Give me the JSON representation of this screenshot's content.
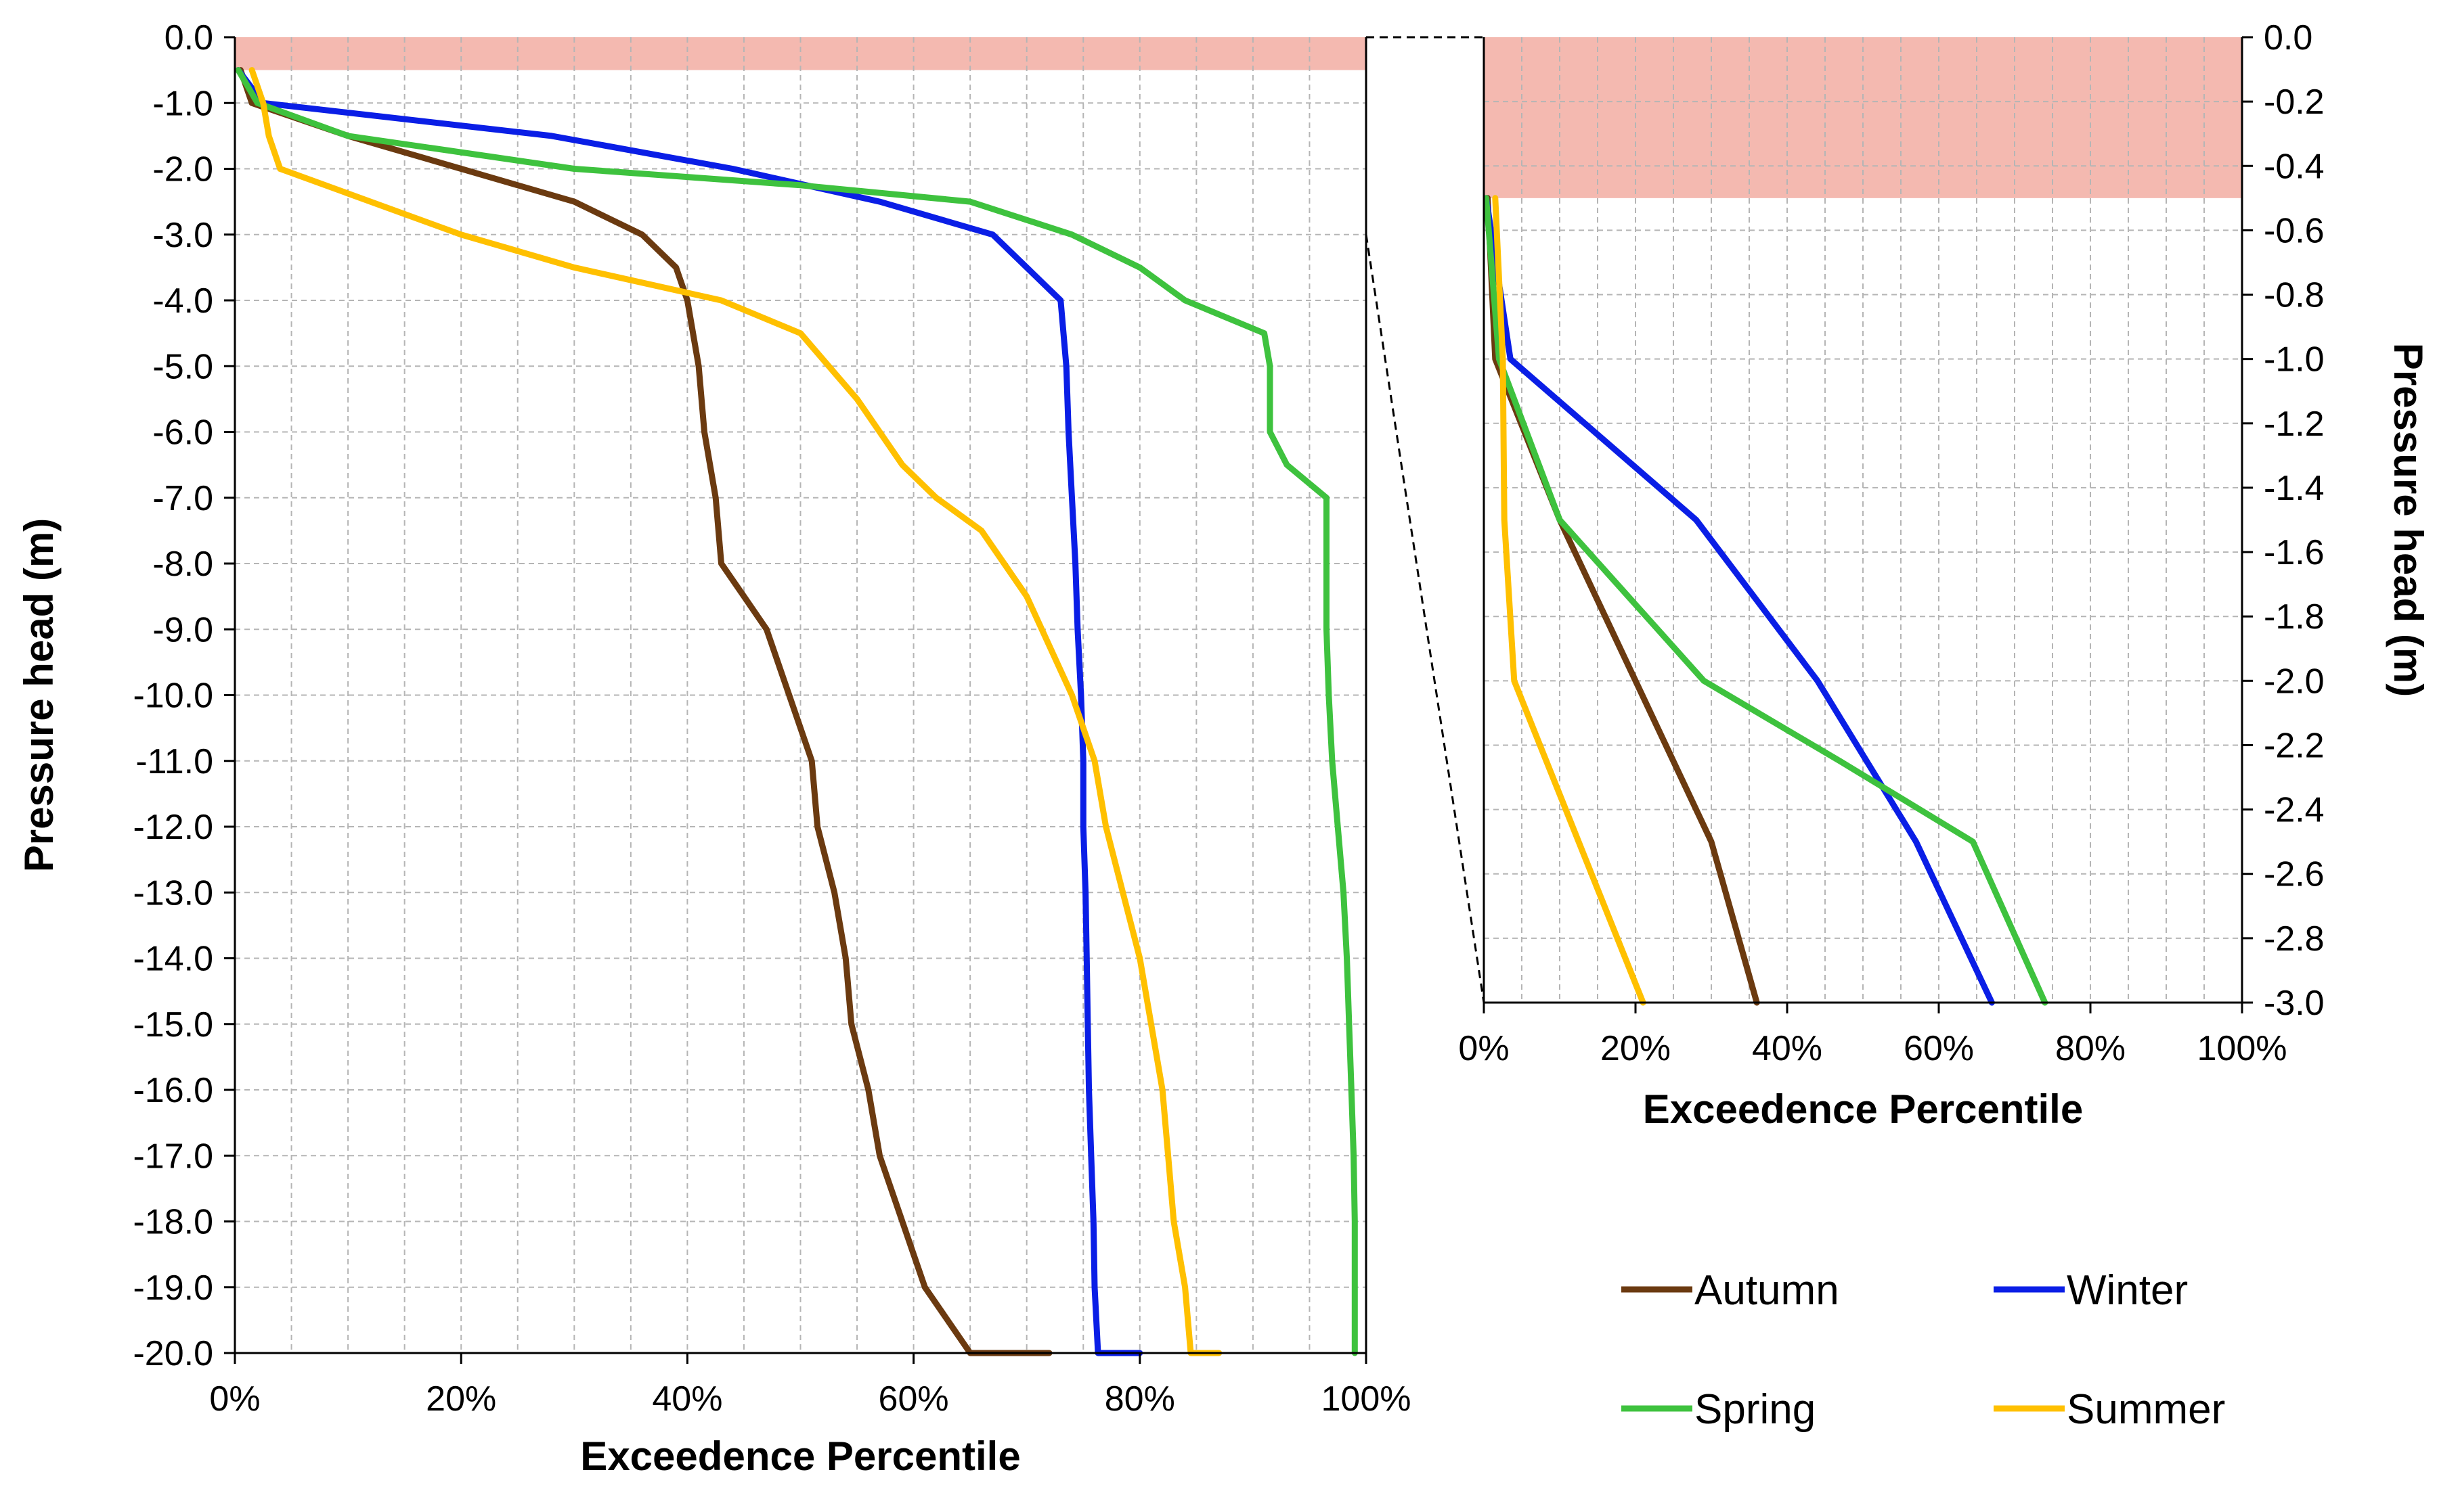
{
  "chart_data": [
    {
      "id": "main",
      "type": "line",
      "title": "",
      "xlabel": "Exceedence Percentile",
      "ylabel": "Pressure head (m)",
      "xlim": [
        0,
        100
      ],
      "ylim": [
        -20,
        0
      ],
      "x_ticks": [
        "0%",
        "20%",
        "40%",
        "60%",
        "80%",
        "100%"
      ],
      "y_ticks": [
        "0.0",
        "-1.0",
        "-2.0",
        "-3.0",
        "-4.0",
        "-5.0",
        "-6.0",
        "-7.0",
        "-8.0",
        "-9.0",
        "-10.0",
        "-11.0",
        "-12.0",
        "-13.0",
        "-14.0",
        "-15.0",
        "-16.0",
        "-17.0",
        "-18.0",
        "-19.0",
        "-20.0"
      ],
      "grid": true,
      "shaded_band": {
        "y_from": 0.0,
        "y_to": -0.5,
        "color": "#f4b9b0"
      },
      "series": [
        {
          "name": "Autumn",
          "color": "#6b3a10",
          "points": [
            [
              0.5,
              -0.5
            ],
            [
              1.5,
              -1.0
            ],
            [
              10,
              -1.5
            ],
            [
              20,
              -2.0
            ],
            [
              30,
              -2.5
            ],
            [
              36,
              -3.0
            ],
            [
              39,
              -3.5
            ],
            [
              40,
              -4.0
            ],
            [
              41,
              -5.0
            ],
            [
              41.5,
              -6.0
            ],
            [
              42.5,
              -7.0
            ],
            [
              43,
              -8.0
            ],
            [
              45,
              -8.5
            ],
            [
              47,
              -9.0
            ],
            [
              49,
              -10.0
            ],
            [
              51,
              -11.0
            ],
            [
              51.5,
              -12.0
            ],
            [
              53,
              -13.0
            ],
            [
              54,
              -14.0
            ],
            [
              54.5,
              -15.0
            ],
            [
              56,
              -16.0
            ],
            [
              57,
              -17.0
            ],
            [
              59,
              -18.0
            ],
            [
              61,
              -19.0
            ],
            [
              65,
              -20.0
            ],
            [
              72,
              -20.0
            ]
          ]
        },
        {
          "name": "Winter",
          "color": "#0a1ee6",
          "points": [
            [
              0.3,
              -0.5
            ],
            [
              2.5,
              -1.0
            ],
            [
              28,
              -1.5
            ],
            [
              44,
              -2.0
            ],
            [
              57,
              -2.5
            ],
            [
              67,
              -3.0
            ],
            [
              73,
              -4.0
            ],
            [
              73.5,
              -5.0
            ],
            [
              73.7,
              -6.0
            ],
            [
              74,
              -7.0
            ],
            [
              74.3,
              -8.0
            ],
            [
              74.5,
              -9.0
            ],
            [
              74.8,
              -10.0
            ],
            [
              75,
              -11.0
            ],
            [
              75,
              -12.0
            ],
            [
              75.2,
              -13.0
            ],
            [
              75.3,
              -14.0
            ],
            [
              75.4,
              -15.0
            ],
            [
              75.5,
              -16.0
            ],
            [
              75.7,
              -17.0
            ],
            [
              75.9,
              -18.0
            ],
            [
              76,
              -19.0
            ],
            [
              76.3,
              -20.0
            ],
            [
              80,
              -20.0
            ]
          ]
        },
        {
          "name": "Spring",
          "color": "#3ec23e",
          "points": [
            [
              0.3,
              -0.5
            ],
            [
              2,
              -1.0
            ],
            [
              10,
              -1.5
            ],
            [
              30,
              -2.0
            ],
            [
              50,
              -2.25
            ],
            [
              65,
              -2.5
            ],
            [
              74,
              -3.0
            ],
            [
              80,
              -3.5
            ],
            [
              84,
              -4.0
            ],
            [
              91,
              -4.5
            ],
            [
              91.5,
              -5.0
            ],
            [
              91.5,
              -6.0
            ],
            [
              93,
              -6.5
            ],
            [
              96.5,
              -7.0
            ],
            [
              96.5,
              -8.0
            ],
            [
              96.5,
              -9.0
            ],
            [
              96.7,
              -10.0
            ],
            [
              97,
              -11.0
            ],
            [
              97.5,
              -12.0
            ],
            [
              98,
              -13.0
            ],
            [
              98.3,
              -14.0
            ],
            [
              98.5,
              -15.0
            ],
            [
              98.7,
              -16.0
            ],
            [
              98.9,
              -17.0
            ],
            [
              99,
              -18.0
            ],
            [
              99,
              -19.0
            ],
            [
              99,
              -20.0
            ]
          ]
        },
        {
          "name": "Summer",
          "color": "#ffc000",
          "points": [
            [
              1.5,
              -0.5
            ],
            [
              2.5,
              -1.0
            ],
            [
              3,
              -1.5
            ],
            [
              4,
              -2.0
            ],
            [
              20,
              -3.0
            ],
            [
              30,
              -3.5
            ],
            [
              43,
              -4.0
            ],
            [
              50,
              -4.5
            ],
            [
              55,
              -5.5
            ],
            [
              59,
              -6.5
            ],
            [
              62,
              -7.0
            ],
            [
              66,
              -7.5
            ],
            [
              70,
              -8.5
            ],
            [
              74,
              -10.0
            ],
            [
              76,
              -11.0
            ],
            [
              77,
              -12.0
            ],
            [
              78.5,
              -13.0
            ],
            [
              80,
              -14.0
            ],
            [
              81,
              -15.0
            ],
            [
              82,
              -16.0
            ],
            [
              82.5,
              -17.0
            ],
            [
              83,
              -18.0
            ],
            [
              84,
              -19.0
            ],
            [
              84.5,
              -20.0
            ],
            [
              87,
              -20.0
            ]
          ]
        }
      ]
    },
    {
      "id": "inset",
      "type": "line",
      "title": "",
      "xlabel": "Exceedence Percentile",
      "ylabel": "Pressure head (m)",
      "xlim": [
        0,
        100
      ],
      "ylim": [
        -3,
        0
      ],
      "x_ticks": [
        "0%",
        "20%",
        "40%",
        "60%",
        "80%",
        "100%"
      ],
      "y_ticks": [
        "0.0",
        "-0.2",
        "-0.4",
        "-0.6",
        "-0.8",
        "-1.0",
        "-1.2",
        "-1.4",
        "-1.6",
        "-1.8",
        "-2.0",
        "-2.2",
        "-2.4",
        "-2.6",
        "-2.8",
        "-3.0"
      ],
      "grid": true,
      "shaded_band": {
        "y_from": 0.0,
        "y_to": -0.5,
        "color": "#f4b9b0"
      },
      "series": [
        {
          "name": "Autumn",
          "color": "#6b3a10",
          "points": [
            [
              0.5,
              -0.5
            ],
            [
              1.5,
              -1.0
            ],
            [
              10,
              -1.5
            ],
            [
              20,
              -2.0
            ],
            [
              30,
              -2.5
            ],
            [
              36,
              -3.0
            ]
          ]
        },
        {
          "name": "Winter",
          "color": "#0a1ee6",
          "points": [
            [
              0.3,
              -0.5
            ],
            [
              3.5,
              -1.0
            ],
            [
              28,
              -1.5
            ],
            [
              44,
              -2.0
            ],
            [
              57,
              -2.5
            ],
            [
              67,
              -3.0
            ]
          ]
        },
        {
          "name": "Spring",
          "color": "#3ec23e",
          "points": [
            [
              0.3,
              -0.5
            ],
            [
              2,
              -1.0
            ],
            [
              10,
              -1.5
            ],
            [
              29,
              -2.0
            ],
            [
              47,
              -2.25
            ],
            [
              64.5,
              -2.5
            ],
            [
              74,
              -3.0
            ]
          ]
        },
        {
          "name": "Summer",
          "color": "#ffc000",
          "points": [
            [
              1.5,
              -0.5
            ],
            [
              2.5,
              -1.0
            ],
            [
              2.7,
              -1.5
            ],
            [
              4,
              -2.0
            ],
            [
              21,
              -3.0
            ]
          ]
        }
      ]
    }
  ],
  "legend": {
    "placement": "bottom-right",
    "entries": [
      {
        "name": "Autumn",
        "color": "#6b3a10"
      },
      {
        "name": "Winter",
        "color": "#0a1ee6"
      },
      {
        "name": "Spring",
        "color": "#3ec23e"
      },
      {
        "name": "Summer",
        "color": "#ffc000"
      }
    ]
  }
}
